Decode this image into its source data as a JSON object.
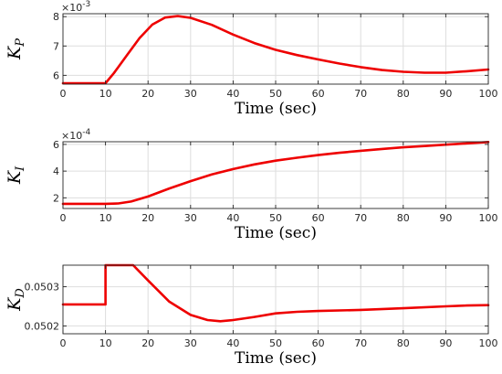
{
  "chart_data": [
    {
      "type": "line",
      "ylabel": "K",
      "ylabel_sub": "P",
      "xlabel": "Time (sec)",
      "exponent_label": "×10",
      "exponent_power": "-3",
      "xlim": [
        0,
        100
      ],
      "ylim": [
        5.7,
        8.1
      ],
      "xticks": [
        "0",
        "10",
        "20",
        "30",
        "40",
        "50",
        "60",
        "70",
        "80",
        "90",
        "100"
      ],
      "yticks": [
        {
          "value": 6,
          "label": "6"
        },
        {
          "value": 7,
          "label": "7"
        },
        {
          "value": 8,
          "label": "8"
        }
      ],
      "grid": true,
      "series": [
        {
          "color": "#ee0000",
          "x": [
            0,
            10,
            12,
            15,
            18,
            21,
            24,
            27,
            30,
            35,
            40,
            45,
            50,
            55,
            60,
            65,
            70,
            75,
            80,
            85,
            90,
            95,
            100
          ],
          "y": [
            5.73,
            5.73,
            6.08,
            6.68,
            7.27,
            7.73,
            7.97,
            8.02,
            7.96,
            7.72,
            7.39,
            7.1,
            6.87,
            6.69,
            6.54,
            6.4,
            6.28,
            6.18,
            6.12,
            6.09,
            6.09,
            6.14,
            6.2
          ]
        }
      ]
    },
    {
      "type": "line",
      "ylabel": "K",
      "ylabel_sub": "I",
      "xlabel": "Time (sec)",
      "exponent_label": "×10",
      "exponent_power": "-4",
      "xlim": [
        0,
        100
      ],
      "ylim": [
        1.2,
        6.2
      ],
      "xticks": [
        "0",
        "10",
        "20",
        "30",
        "40",
        "50",
        "60",
        "70",
        "80",
        "90",
        "100"
      ],
      "yticks": [
        {
          "value": 2,
          "label": "2"
        },
        {
          "value": 4,
          "label": "4"
        },
        {
          "value": 6,
          "label": "6"
        }
      ],
      "grid": true,
      "series": [
        {
          "color": "#ee0000",
          "x": [
            0,
            10,
            13,
            16,
            20,
            25,
            30,
            35,
            40,
            45,
            50,
            55,
            60,
            65,
            70,
            75,
            80,
            85,
            90,
            95,
            100
          ],
          "y": [
            1.55,
            1.55,
            1.58,
            1.72,
            2.1,
            2.7,
            3.25,
            3.75,
            4.15,
            4.5,
            4.78,
            5.0,
            5.2,
            5.37,
            5.52,
            5.66,
            5.78,
            5.88,
            5.98,
            6.08,
            6.18
          ]
        }
      ]
    },
    {
      "type": "line",
      "ylabel": "K",
      "ylabel_sub": "D",
      "xlabel": "Time (sec)",
      "xlim": [
        0,
        100
      ],
      "ylim": [
        0.05018,
        0.050355
      ],
      "xticks": [
        "0",
        "10",
        "20",
        "30",
        "40",
        "50",
        "60",
        "70",
        "80",
        "90",
        "100"
      ],
      "yticks": [
        {
          "value": 0.0502,
          "label": "0.0502"
        },
        {
          "value": 0.0503,
          "label": "0.0503"
        }
      ],
      "grid": true,
      "series": [
        {
          "color": "#ee0000",
          "x": [
            0,
            10,
            10,
            16.5,
            20,
            25,
            30,
            34,
            37,
            40,
            45,
            50,
            55,
            60,
            70,
            80,
            90,
            95,
            100
          ],
          "y": [
            0.050255,
            0.050255,
            0.050355,
            0.050355,
            0.050316,
            0.050262,
            0.050228,
            0.050215,
            0.050212,
            0.050215,
            0.050223,
            0.050232,
            0.050236,
            0.050238,
            0.050241,
            0.050245,
            0.05025,
            0.050252,
            0.050253
          ]
        }
      ]
    }
  ]
}
